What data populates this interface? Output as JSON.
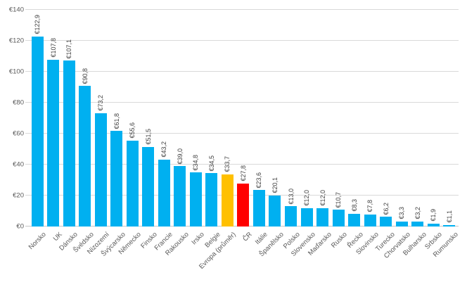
{
  "chart_data": {
    "type": "bar",
    "title": "",
    "currency_prefix": "€",
    "categories": [
      "Norsko",
      "UK",
      "Dánsko",
      "Švédsko",
      "Nizozemí",
      "Švýcarsko",
      "Německo",
      "Finsko",
      "Francie",
      "Rakousko",
      "Irsko",
      "Belgie",
      "Evropa (průměr)",
      "ČR",
      "Itálie",
      "Španělsko",
      "Polsko",
      "Slovensko",
      "Maďarsko",
      "Rusko",
      "Řecko",
      "Slovinsko",
      "Turecko",
      "Chorvatsko",
      "Bulharsko",
      "Srbsko",
      "Rumunsko"
    ],
    "values": [
      122.9,
      107.8,
      107.1,
      90.8,
      73.2,
      61.8,
      55.6,
      51.5,
      43.2,
      39.0,
      34.8,
      34.5,
      33.7,
      27.8,
      23.6,
      20.1,
      13.0,
      12.0,
      12.0,
      10.7,
      8.3,
      7.8,
      6.2,
      3.3,
      3.2,
      1.9,
      1.1
    ],
    "value_labels": [
      "€122,9",
      "€107,8",
      "€107,1",
      "€90,8",
      "€73,2",
      "€61,8",
      "€55,6",
      "€51,5",
      "€43,2",
      "€39,0",
      "€34,8",
      "€34,5",
      "€33,7",
      "€27,8",
      "€23,6",
      "€20,1",
      "€13,0",
      "€12,0",
      "€12,0",
      "€10,7",
      "€8,3",
      "€7,8",
      "€6,2",
      "€3,3",
      "€3,2",
      "€1,9",
      "€1,1"
    ],
    "y_ticks": [
      "€0",
      "€20",
      "€40",
      "€60",
      "€80",
      "€100",
      "€120",
      "€140"
    ],
    "ylim": [
      0,
      140
    ],
    "grid": true,
    "legend": "none",
    "xlabel": "",
    "ylabel": "",
    "colors": {
      "default_bar": "#00b0f0",
      "gridline": "#d9d9d9",
      "axis_line": "#c6c6c6",
      "text": "#595959",
      "value_text": "#404040"
    },
    "highlights": [
      {
        "category": "Evropa (průměr)",
        "index": 12,
        "color": "#ffc000"
      },
      {
        "category": "ČR",
        "index": 13,
        "color": "#ff0000"
      }
    ]
  }
}
